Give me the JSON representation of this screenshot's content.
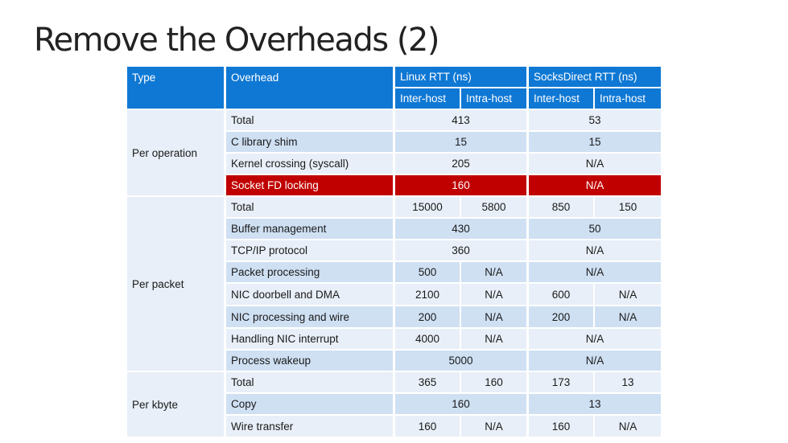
{
  "title": "Remove the Overheads (2)",
  "colors": {
    "header": "#0f78d4",
    "row_dark": "#cfe0f3",
    "row_light": "#e8eff8",
    "highlight": "#c00000"
  },
  "header": {
    "type": "Type",
    "overhead": "Overhead",
    "linux": "Linux RTT (ns)",
    "socksdirect": "SocksDirect RTT (ns)",
    "inter_host": "Inter-host",
    "intra_host": "Intra-host"
  },
  "groups": {
    "op": "Per operation",
    "pkt": "Per packet",
    "kb": "Per kbyte"
  },
  "rows": {
    "op_total": {
      "label": "Total",
      "linux": "413",
      "socks": "53"
    },
    "libc": {
      "label": "C library shim",
      "linux": "15",
      "socks": "15"
    },
    "kernel": {
      "label": "Kernel crossing (syscall)",
      "linux": "205",
      "socks": "N/A"
    },
    "fdlock": {
      "label": "Socket FD locking",
      "linux": "160",
      "socks": "N/A"
    },
    "pkt_total": {
      "label": "Total",
      "linux_inter": "15000",
      "linux_intra": "5800",
      "socks_inter": "850",
      "socks_intra": "150"
    },
    "buffer": {
      "label": "Buffer management",
      "linux": "430",
      "socks": "50"
    },
    "tcpip": {
      "label": "TCP/IP protocol",
      "linux": "360",
      "socks": "N/A"
    },
    "pktproc": {
      "label": "Packet processing",
      "linux_inter": "500",
      "linux_intra": "N/A",
      "socks": "N/A"
    },
    "doorbell": {
      "label": "NIC doorbell and DMA",
      "linux_inter": "2100",
      "linux_intra": "N/A",
      "socks_inter": "600",
      "socks_intra": "N/A"
    },
    "nicwire": {
      "label": "NIC processing and wire",
      "linux_inter": "200",
      "linux_intra": "N/A",
      "socks_inter": "200",
      "socks_intra": "N/A"
    },
    "interrupt": {
      "label": "Handling NIC interrupt",
      "linux_inter": "4000",
      "linux_intra": "N/A",
      "socks": "N/A"
    },
    "wakeup": {
      "label": "Process wakeup",
      "linux": "5000",
      "socks": "N/A"
    },
    "kb_total": {
      "label": "Total",
      "linux_inter": "365",
      "linux_intra": "160",
      "socks_inter": "173",
      "socks_intra": "13"
    },
    "copy": {
      "label": "Copy",
      "linux": "160",
      "socks": "13"
    },
    "wire": {
      "label": "Wire transfer",
      "linux_inter": "160",
      "linux_intra": "N/A",
      "socks_inter": "160",
      "socks_intra": "N/A"
    }
  }
}
